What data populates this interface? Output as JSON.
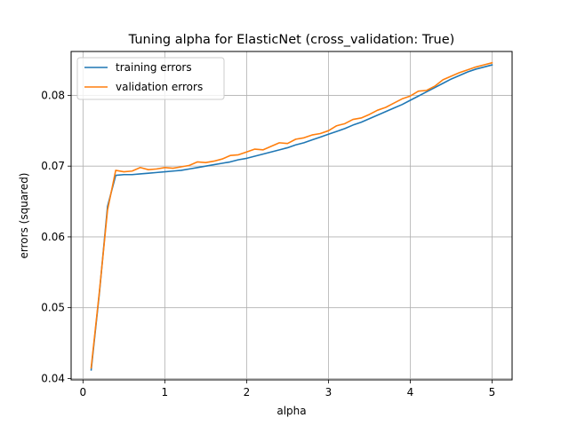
{
  "chart_data": {
    "type": "line",
    "title": "Tuning alpha for ElasticNet (cross_validation: True)",
    "xlabel": "alpha",
    "ylabel": "errors (squared)",
    "xlim": [
      -0.145,
      5.245
    ],
    "ylim": [
      0.0398,
      0.0862
    ],
    "xticks": [
      0,
      1,
      2,
      3,
      4,
      5
    ],
    "xtick_labels": [
      "0",
      "1",
      "2",
      "3",
      "4",
      "5"
    ],
    "yticks": [
      0.04,
      0.05,
      0.06,
      0.07,
      0.08
    ],
    "ytick_labels": [
      "0.04",
      "0.05",
      "0.06",
      "0.07",
      "0.08"
    ],
    "grid": true,
    "legend_position": "top-left",
    "x": [
      0.1,
      0.2,
      0.3,
      0.4,
      0.5,
      0.6,
      0.7,
      0.8,
      0.9,
      1.0,
      1.1,
      1.2,
      1.3,
      1.4,
      1.5,
      1.6,
      1.7,
      1.8,
      1.9,
      2.0,
      2.1,
      2.2,
      2.3,
      2.4,
      2.5,
      2.6,
      2.7,
      2.8,
      2.9,
      3.0,
      3.1,
      3.2,
      3.3,
      3.4,
      3.5,
      3.6,
      3.7,
      3.8,
      3.9,
      4.0,
      4.1,
      4.2,
      4.3,
      4.4,
      4.5,
      4.6,
      4.7,
      4.8,
      4.9,
      5.0
    ],
    "series": [
      {
        "name": "training errors",
        "color": "#1f77b4",
        "values": [
          0.0412,
          0.052,
          0.0643,
          0.0687,
          0.0688,
          0.0688,
          0.0689,
          0.069,
          0.0691,
          0.0692,
          0.0693,
          0.0694,
          0.0696,
          0.0698,
          0.07,
          0.0702,
          0.0704,
          0.0706,
          0.0709,
          0.0711,
          0.0714,
          0.0717,
          0.072,
          0.0723,
          0.0726,
          0.073,
          0.0733,
          0.0737,
          0.0741,
          0.0745,
          0.0749,
          0.0753,
          0.0758,
          0.0762,
          0.0767,
          0.0772,
          0.0777,
          0.0782,
          0.0787,
          0.0793,
          0.0799,
          0.0805,
          0.0811,
          0.0817,
          0.0823,
          0.0828,
          0.0833,
          0.0837,
          0.084,
          0.0843
        ]
      },
      {
        "name": "validation errors",
        "color": "#ff7f0e",
        "values": [
          0.0415,
          0.0522,
          0.0638,
          0.0694,
          0.0692,
          0.0693,
          0.0698,
          0.0695,
          0.0696,
          0.0698,
          0.0697,
          0.0699,
          0.0701,
          0.0706,
          0.0705,
          0.0707,
          0.071,
          0.0715,
          0.0716,
          0.072,
          0.0724,
          0.0723,
          0.0728,
          0.0733,
          0.0732,
          0.0738,
          0.074,
          0.0744,
          0.0746,
          0.075,
          0.0757,
          0.076,
          0.0766,
          0.0768,
          0.0773,
          0.0779,
          0.0783,
          0.0789,
          0.0795,
          0.0799,
          0.0806,
          0.0807,
          0.0813,
          0.0822,
          0.0827,
          0.0832,
          0.0836,
          0.084,
          0.0843,
          0.0846
        ]
      }
    ]
  }
}
